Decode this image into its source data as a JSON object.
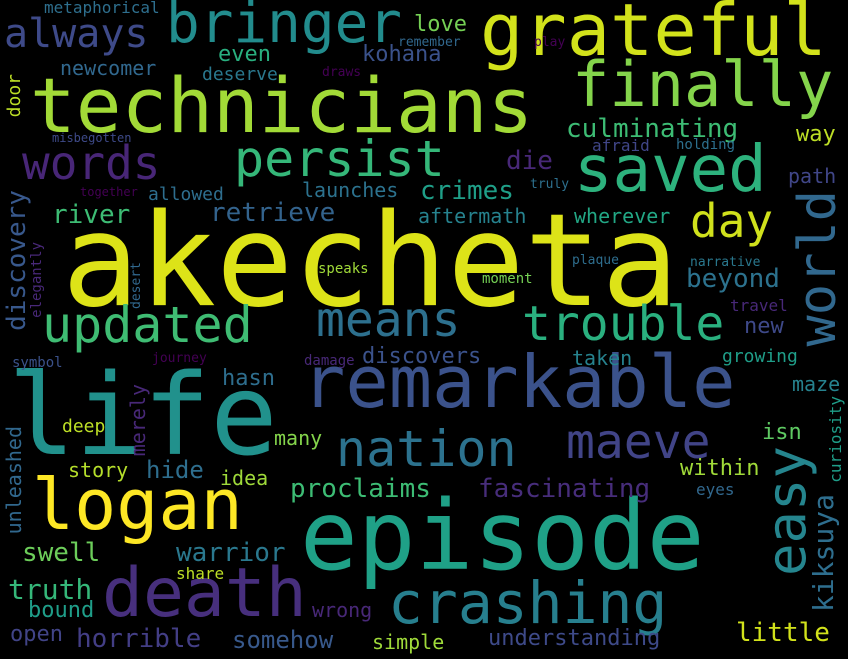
{
  "words": {
    "akecheta": "akecheta",
    "life": "life",
    "episode": "episode",
    "technicians": "technicians",
    "remarkable": "remarkable",
    "grateful": "grateful",
    "logan": "logan",
    "death": "death",
    "finally": "finally",
    "saved": "saved",
    "bringer": "bringer",
    "crashing": "crashing",
    "persist": "persist",
    "updated": "updated",
    "nation": "nation",
    "means": "means",
    "trouble": "trouble",
    "world": "world",
    "easy": "easy",
    "maeve": "maeve",
    "words": "words",
    "always": "always",
    "day": "day",
    "culminating": "culminating",
    "discovery": "discovery",
    "retrieve": "retrieve",
    "river": "river",
    "crimes": "crimes",
    "die": "die",
    "launches": "launches",
    "even": "even",
    "kohana": "kohana",
    "love": "love",
    "newcomer": "newcomer",
    "deserve": "deserve",
    "metaphorical": "metaphorical",
    "remember": "remember",
    "way": "way",
    "path": "path",
    "beyond": "beyond",
    "new": "new",
    "wherever": "wherever",
    "aftermath": "aftermath",
    "allowed": "allowed",
    "afraid": "afraid",
    "holding": "holding",
    "truly": "truly",
    "door": "door",
    "discovers": "discovers",
    "hasn": "hasn",
    "taken": "taken",
    "growing": "growing",
    "maze": "maze",
    "isn": "isn",
    "deep": "deep",
    "many": "many",
    "story": "story",
    "hide": "hide",
    "idea": "idea",
    "proclaims": "proclaims",
    "fascinating": "fascinating",
    "within": "within",
    "eyes": "eyes",
    "kiksuya": "kiksuya",
    "swell": "swell",
    "warrior": "warrior",
    "unleashed": "unleashed",
    "truth": "truth",
    "share": "share",
    "bound": "bound",
    "wrong": "wrong",
    "open": "open",
    "horrible": "horrible",
    "somehow": "somehow",
    "simple": "simple",
    "understanding": "understanding",
    "little": "little",
    "merely": "merely",
    "curiosity": "curiosity",
    "elegantly": "elegantly",
    "desert": "desert",
    "speaks": "speaks",
    "moment": "moment",
    "plaque": "plaque",
    "narrative": "narrative",
    "travel": "travel",
    "symbol": "symbol",
    "journey": "journey",
    "damage": "damage",
    "together": "together",
    "misbegotten": "misbegotten",
    "draws": "draws",
    "play": "play"
  },
  "colors": {
    "background": "#000000",
    "yellow": "#dde318",
    "lime": "#a2da37",
    "green": "#5ec962",
    "teal_green": "#22a884",
    "teal": "#1f9e89",
    "blue_teal": "#26828e",
    "steel_blue": "#31688e",
    "indigo": "#3e4a89",
    "purple": "#482878",
    "dark_purple": "#440154"
  }
}
